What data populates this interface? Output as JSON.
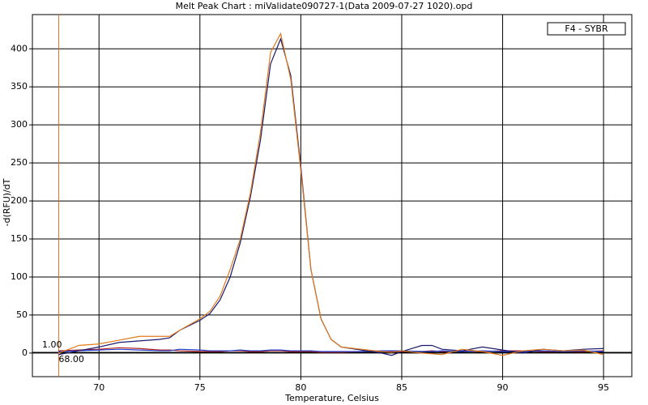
{
  "chart_data": {
    "type": "line",
    "title": "Melt Peak Chart : miValidate090727-1(Data 2009-07-27 1020).opd",
    "x_label": "Temperature, Celsius",
    "y_label": "-d(RFU)/dT",
    "legend": "F4 - SYBR",
    "x": [
      68,
      69,
      70,
      71,
      72,
      73,
      73.5,
      74,
      75,
      75.5,
      76,
      76.5,
      77,
      77.5,
      78,
      78.5,
      79,
      79.5,
      80,
      80.5,
      81,
      81.5,
      82,
      83,
      84,
      84.5,
      85,
      86,
      86.5,
      87,
      88,
      89,
      90,
      91,
      92,
      93,
      94,
      95
    ],
    "series": [
      {
        "color": "#e07a1e",
        "values": [
          0,
          10,
          12,
          17,
          22,
          22,
          22,
          30,
          45,
          55,
          75,
          110,
          150,
          210,
          290,
          395,
          420,
          360,
          240,
          110,
          45,
          18,
          8,
          5,
          2,
          1,
          3,
          0,
          -1,
          -2,
          5,
          2,
          -3,
          3,
          5,
          3,
          4,
          -2
        ]
      },
      {
        "color": "#1a1a6e",
        "values": [
          -2,
          3,
          8,
          14,
          16,
          18,
          20,
          30,
          43,
          52,
          70,
          100,
          145,
          205,
          280,
          380,
          413,
          365,
          245,
          110,
          45,
          18,
          8,
          4,
          0,
          -3,
          2,
          10,
          10,
          5,
          3,
          8,
          4,
          0,
          5,
          3,
          5,
          6
        ]
      },
      {
        "color": "#1f3fd0",
        "values": [
          2,
          3,
          4,
          5,
          4,
          3,
          3,
          5,
          4,
          3,
          3,
          3,
          4,
          3,
          3,
          4,
          4,
          3,
          3,
          3,
          2,
          2,
          2,
          2,
          3,
          3,
          3,
          2,
          2,
          3,
          2,
          3,
          2,
          2,
          3,
          2,
          3,
          2
        ]
      },
      {
        "color": "#b02020",
        "values": [
          3,
          4,
          5,
          7,
          6,
          4,
          4,
          3,
          2,
          2,
          2,
          3,
          3,
          2,
          2,
          3,
          3,
          2,
          2,
          2,
          1,
          1,
          1,
          2,
          2,
          2,
          2,
          2,
          3,
          2,
          3,
          2,
          3,
          3,
          2,
          2,
          2,
          3
        ]
      }
    ],
    "xlim": [
      66.7,
      96.4
    ],
    "ylim": [
      -31,
      445
    ],
    "xticks": [
      70,
      75,
      80,
      85,
      90,
      95
    ],
    "yticks": [
      0,
      50,
      100,
      150,
      200,
      250,
      300,
      350,
      400
    ],
    "grid": true,
    "threshold": {
      "value": 1,
      "label": "1.00",
      "color": "#000000"
    },
    "marker": {
      "value": 68,
      "label": "68.00",
      "color": "#d0702a"
    }
  }
}
